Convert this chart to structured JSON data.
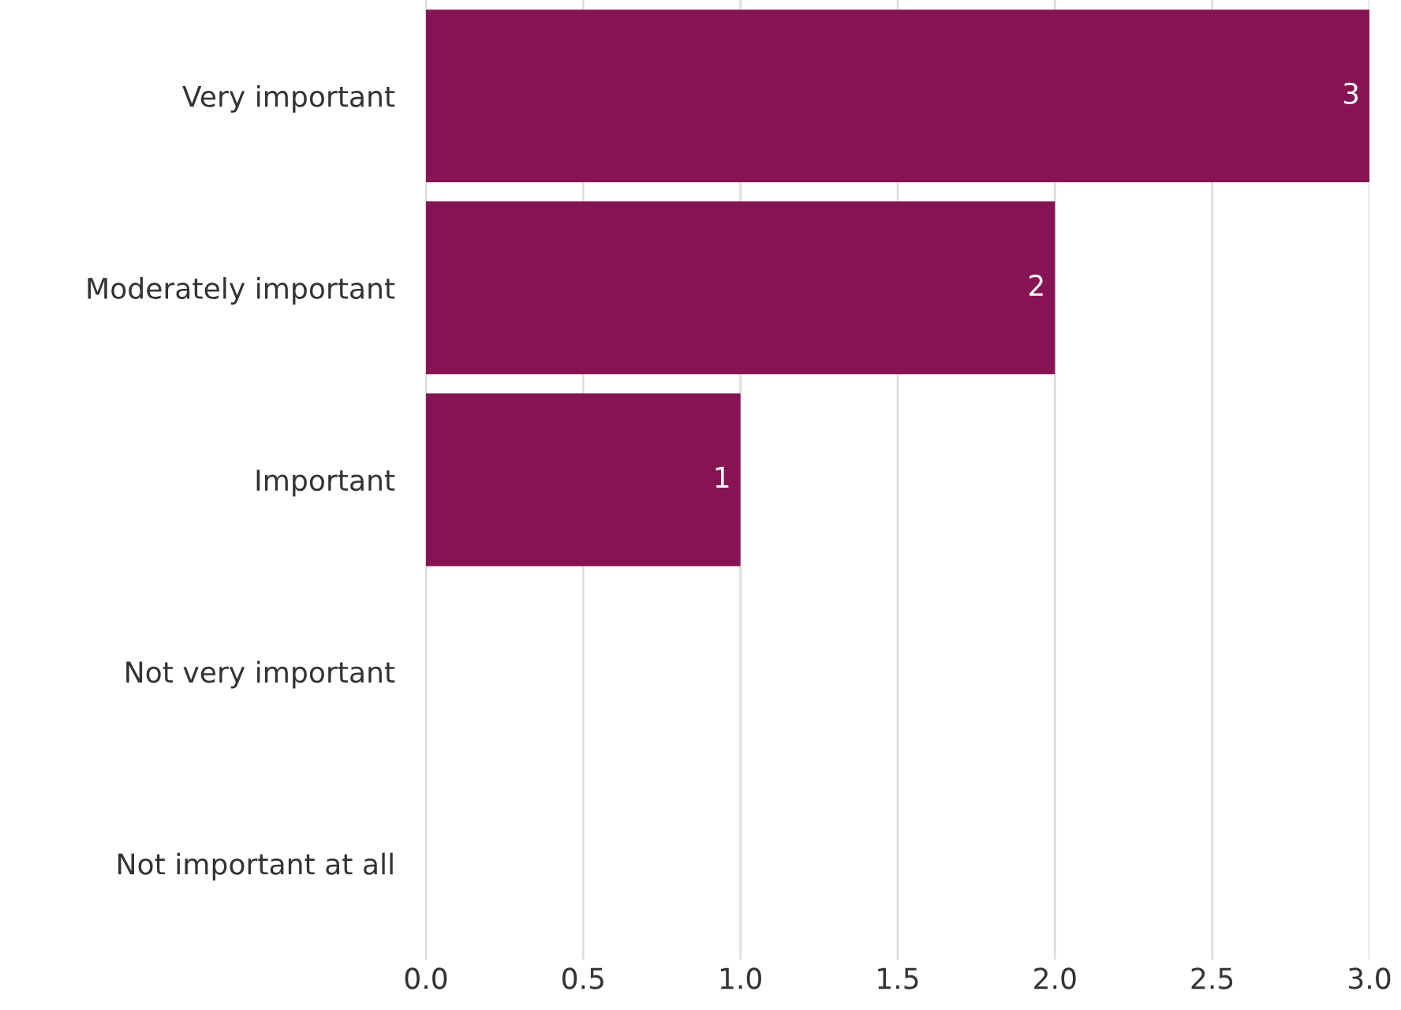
{
  "chart_data": {
    "type": "bar",
    "orientation": "horizontal",
    "categories": [
      "Very important",
      "Moderately important",
      "Important",
      "Not very important",
      "Not important at all"
    ],
    "values": [
      3,
      2,
      1,
      0,
      0
    ],
    "value_labels": [
      "3",
      "2",
      "1",
      null,
      null
    ],
    "color": "#861454",
    "xlim": [
      0,
      3
    ],
    "xticks": [
      {
        "value": 0,
        "label": "0.0"
      },
      {
        "value": 0.5,
        "label": "0.5"
      },
      {
        "value": 1,
        "label": "1.0"
      },
      {
        "value": 1.5,
        "label": "1.5"
      },
      {
        "value": 2,
        "label": "2.0"
      },
      {
        "value": 2.5,
        "label": "2.5"
      },
      {
        "value": 3,
        "label": "3.0"
      }
    ],
    "grid": "x",
    "legend": false
  }
}
